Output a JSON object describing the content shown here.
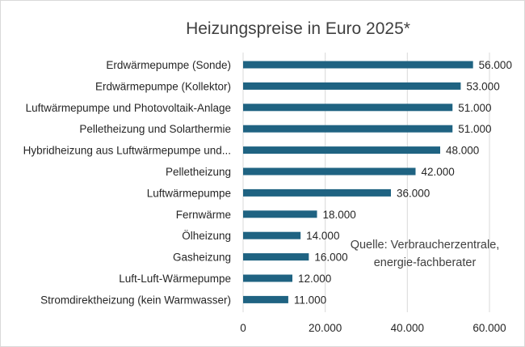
{
  "chart_data": {
    "type": "bar",
    "orientation": "horizontal",
    "title": "Heizungspreise  in Euro 2025*",
    "categories": [
      "Erdwärmepumpe (Sonde)",
      "Erdwärmepumpe (Kollektor)",
      "Luftwärmepumpe und Photovoltaik-Anlage",
      "Pelletheizung und Solarthermie",
      "Hybridheizung aus Luftwärmepumpe und...",
      "Pelletheizung",
      "Luftwärmepumpe",
      "Fernwärme",
      "Ölheizung",
      "Gasheizung",
      "Luft-Luft-Wärmepumpe",
      "Stromdirektheizung (kein Warmwasser)"
    ],
    "values": [
      56000,
      53000,
      51000,
      51000,
      48000,
      42000,
      36000,
      18000,
      14000,
      16000,
      12000,
      11000
    ],
    "value_labels": [
      "56.000",
      "53.000",
      "51.000",
      "51.000",
      "48.000",
      "42.000",
      "36.000",
      "18.000",
      "14.000",
      "16.000",
      "12.000",
      "11.000"
    ],
    "xlim": [
      0,
      60000
    ],
    "xticks": [
      0,
      20000,
      40000,
      60000
    ],
    "xtick_labels": [
      "0",
      "20.000",
      "40.000",
      "60.000"
    ],
    "xlabel": "",
    "ylabel": "",
    "grid": true,
    "bar_color": "#1f6382",
    "annotation_lines": [
      "Quelle: Verbraucherzentrale,",
      "energie-fachberater"
    ]
  }
}
